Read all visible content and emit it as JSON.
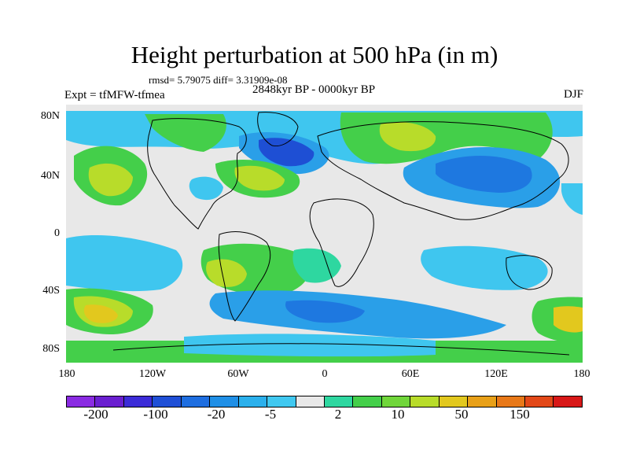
{
  "title": "Height perturbation at 500 hPa (in m)",
  "rmsd_text": "rmsd= 5.79075 diff= 3.31909e-08",
  "period": "2848kyr BP - 0000kyr BP",
  "experiment": "Expt = tfMFW-tfmea",
  "season": "DJF",
  "lat_labels": [
    "80N",
    "40N",
    "0",
    "40S",
    "80S"
  ],
  "lon_labels": [
    "180",
    "120W",
    "60W",
    "0",
    "60E",
    "120E",
    "180"
  ],
  "colorbar": {
    "colors": [
      "#8a2be2",
      "#6a1fd0",
      "#3c2cd8",
      "#1f4fd6",
      "#1e6ee0",
      "#1f8fe6",
      "#2bb0ec",
      "#40c8f0",
      "#e8e8e8",
      "#2ed7a0",
      "#44cf4a",
      "#70d63a",
      "#b8dc2a",
      "#e2c81e",
      "#e8a018",
      "#e87818",
      "#e24818",
      "#d81818"
    ],
    "labels": [
      "-200",
      "-100",
      "-20",
      "-5",
      "2",
      "10",
      "50",
      "150"
    ]
  },
  "field_colors": {
    "neutral": "#e8e8e8",
    "light_blue": "#3fc6ef",
    "mid_blue": "#2a9fe8",
    "blue": "#1e78e0",
    "dark_blue": "#1e4fd4",
    "teal": "#2ed7a0",
    "green": "#44cf4a",
    "yellow_green": "#b8dc2a",
    "yellow": "#e2c81e",
    "orange": "#e8a018"
  }
}
